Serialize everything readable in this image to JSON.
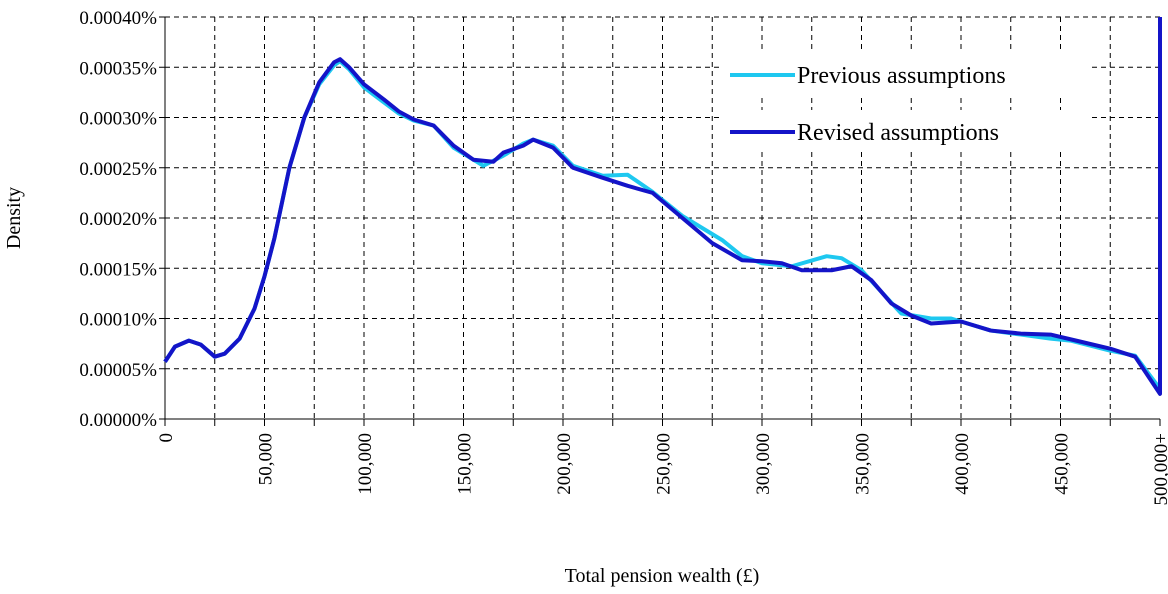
{
  "chart_data": {
    "type": "line",
    "x_label": "Total pension wealth (£)",
    "y_label": "Density",
    "xlim": [
      0,
      500000
    ],
    "ylim": [
      0,
      0.0004
    ],
    "xticks": [
      {
        "value": 0,
        "label": "0"
      },
      {
        "value": 50000,
        "label": "50,000"
      },
      {
        "value": 100000,
        "label": "100,000"
      },
      {
        "value": 150000,
        "label": "150,000"
      },
      {
        "value": 200000,
        "label": "200,000"
      },
      {
        "value": 250000,
        "label": "250,000"
      },
      {
        "value": 300000,
        "label": "300,000"
      },
      {
        "value": 350000,
        "label": "350,000"
      },
      {
        "value": 400000,
        "label": "400,000"
      },
      {
        "value": 450000,
        "label": "450,000"
      },
      {
        "value": 500000,
        "label": "500,000+"
      }
    ],
    "xminor_ticks": [
      25000,
      75000,
      125000,
      175000,
      225000,
      275000,
      325000,
      375000,
      425000,
      475000
    ],
    "yticks": [
      {
        "value": 0,
        "label": "0.00000%"
      },
      {
        "value": 5e-05,
        "label": "0.00005%"
      },
      {
        "value": 0.0001,
        "label": "0.00010%"
      },
      {
        "value": 0.00015,
        "label": "0.00015%"
      },
      {
        "value": 0.0002,
        "label": "0.00020%"
      },
      {
        "value": 0.00025,
        "label": "0.00025%"
      },
      {
        "value": 0.0003,
        "label": "0.00030%"
      },
      {
        "value": 0.00035,
        "label": "0.00035%"
      },
      {
        "value": 0.0004,
        "label": "0.00040%"
      }
    ],
    "grid": true,
    "legend": "upper right",
    "series": [
      {
        "name": "Previous assumptions",
        "color": "#1ec8f0",
        "x": [
          0,
          5000,
          12000,
          18000,
          25000,
          30000,
          37500,
          45000,
          50000,
          55000,
          62500,
          70000,
          77500,
          85000,
          88000,
          92500,
          100000,
          110000,
          117500,
          125000,
          135000,
          145000,
          160000,
          170000,
          180000,
          185000,
          195000,
          205000,
          220000,
          232500,
          245000,
          260000,
          280000,
          290000,
          300000,
          315000,
          332500,
          340000,
          350000,
          370000,
          385000,
          395000,
          415000,
          430000,
          445000,
          455000,
          475000,
          487500,
          500000
        ],
        "values": [
          5.7e-05,
          7.2e-05,
          7.8e-05,
          7.4e-05,
          6.2e-05,
          6.5e-05,
          8e-05,
          0.00011,
          0.000142,
          0.00018,
          0.00025,
          0.0003,
          0.000333,
          0.000352,
          0.000356,
          0.000348,
          0.00033,
          0.000315,
          0.000304,
          0.000297,
          0.000292,
          0.00027,
          0.000252,
          0.000262,
          0.000274,
          0.000278,
          0.000272,
          0.000252,
          0.000242,
          0.000243,
          0.000226,
          0.000202,
          0.000178,
          0.000162,
          0.000155,
          0.000152,
          0.000162,
          0.00016,
          0.000148,
          0.000105,
          0.0001,
          0.0001,
          8.8e-05,
          8.4e-05,
          8e-05,
          7.8e-05,
          6.8e-05,
          6.3e-05,
          3e-05
        ]
      },
      {
        "name": "Revised assumptions",
        "color": "#1414c8",
        "x": [
          0,
          5000,
          12000,
          18000,
          25000,
          30000,
          37500,
          45000,
          50000,
          55000,
          62500,
          70000,
          77500,
          85000,
          88000,
          92500,
          100000,
          110000,
          117500,
          125000,
          135000,
          145000,
          155000,
          165000,
          170000,
          180000,
          185000,
          195000,
          205000,
          220000,
          232500,
          245000,
          260000,
          275000,
          290000,
          300000,
          310000,
          320000,
          335000,
          345000,
          355000,
          365000,
          375000,
          385000,
          400000,
          415000,
          430000,
          445000,
          460000,
          475000,
          487500,
          500000,
          500000
        ],
        "values": [
          5.7e-05,
          7.2e-05,
          7.8e-05,
          7.4e-05,
          6.2e-05,
          6.5e-05,
          8e-05,
          0.00011,
          0.000142,
          0.00018,
          0.00025,
          0.0003,
          0.000335,
          0.000355,
          0.000358,
          0.00035,
          0.000333,
          0.000318,
          0.000306,
          0.000298,
          0.000292,
          0.000272,
          0.000258,
          0.000256,
          0.000265,
          0.000272,
          0.000278,
          0.00027,
          0.00025,
          0.00024,
          0.000232,
          0.000225,
          0.0002,
          0.000175,
          0.000158,
          0.000157,
          0.000155,
          0.000148,
          0.000148,
          0.000152,
          0.000138,
          0.000115,
          0.000103,
          9.5e-05,
          9.7e-05,
          8.8e-05,
          8.5e-05,
          8.4e-05,
          7.7e-05,
          7e-05,
          6.2e-05,
          2.5e-05,
          0.0004
        ]
      }
    ]
  }
}
